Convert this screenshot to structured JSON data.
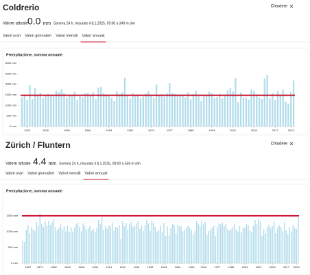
{
  "panels": [
    {
      "title": "Coldrerio",
      "close": "Chiudere",
      "current_label": "Valore attuale",
      "current_value": "0.0",
      "unit": "mm",
      "note": "Somma 24 h, misurato il 8.1.2025, 09:00 a 349 m slm",
      "tabs": [
        "Valori orari",
        "Valori giornalieri",
        "Valori mensili",
        "Valori annuali"
      ],
      "active_tab": 3
    },
    {
      "title": "Zürich / Fluntern",
      "close": "Chiudere",
      "current_label": "Valore attuale",
      "current_value": "4.4",
      "unit": "mm",
      "note": "Somma 24 h, misurato il 8.1.2025, 09:00 a 558 m slm",
      "tabs": [
        "Valori orari",
        "Valori giornalieri",
        "Valori mensili",
        "Valori annuali"
      ],
      "active_tab": 3
    }
  ],
  "chart_data": [
    {
      "type": "bar",
      "title": "Precipitazione, somma annuale",
      "color": "#b3dceb",
      "x": [
        1921,
        1922,
        1923,
        1924,
        1925,
        1926,
        1927,
        1928,
        1929,
        1930,
        1931,
        1932,
        1933,
        1934,
        1935,
        1936,
        1937,
        1938,
        1939,
        1940,
        1941,
        1942,
        1943,
        1944,
        1945,
        1946,
        1947,
        1948,
        1949,
        1950,
        1951,
        1952,
        1953,
        1954,
        1955,
        1956,
        1957,
        1958,
        1959,
        1960,
        1961,
        1962,
        1963,
        1964,
        1965,
        1966,
        1967,
        1968,
        1969,
        1970,
        1971,
        1972,
        1973,
        1974,
        1975,
        1976,
        1977,
        1978,
        1979,
        1980,
        1981,
        1982,
        1983,
        1984,
        1985,
        1986,
        1987,
        1988,
        1989,
        1990,
        1991,
        1992,
        1993,
        1994,
        1995,
        1996,
        1997,
        1998,
        1999,
        2000,
        2001,
        2002,
        2003,
        2004,
        2005,
        2006,
        2007,
        2008,
        2009,
        2010,
        2011,
        2012,
        2013,
        2014,
        2015,
        2016,
        2017,
        2018,
        2019,
        2020,
        2021,
        2022,
        2023,
        2024
      ],
      "values": [
        1380,
        1520,
        1250,
        1960,
        1300,
        1820,
        1450,
        1600,
        1350,
        1500,
        1550,
        1480,
        1420,
        1700,
        1640,
        1760,
        1590,
        1380,
        1450,
        1520,
        1660,
        1250,
        1440,
        1390,
        1580,
        1600,
        1480,
        1620,
        1300,
        1840,
        1880,
        1590,
        1460,
        1500,
        1370,
        1210,
        1690,
        1540,
        1620,
        2310,
        1450,
        1320,
        1600,
        1480,
        1520,
        1330,
        1420,
        1570,
        1680,
        1510,
        1360,
        1990,
        1500,
        1540,
        1420,
        1580,
        2050,
        1600,
        1550,
        1460,
        1520,
        1500,
        1380,
        1620,
        1290,
        1550,
        1700,
        1430,
        1200,
        1510,
        1470,
        1650,
        1580,
        1350,
        1400,
        1560,
        1330,
        1490,
        1720,
        1830,
        1680,
        2300,
        1150,
        1620,
        1380,
        1370,
        1280,
        1760,
        1700,
        1520,
        1390,
        1300,
        2280,
        2450,
        1330,
        1590,
        1260,
        1700,
        1480,
        1750,
        1180,
        1090,
        1640,
        2180
      ],
      "xlim": [
        1920.5,
        2024.5
      ],
      "xticks": [
        1923,
        1930,
        1938,
        1946,
        1954,
        1962,
        1970,
        1977,
        1985,
        1993,
        2001,
        2009,
        2017,
        2023
      ],
      "ylim": [
        0,
        3000
      ],
      "yticks": [
        {
          "value": 0,
          "label": "0 mm"
        },
        {
          "value": 500,
          "label": "500 mm"
        },
        {
          "value": 1000,
          "label": "1000 mm"
        },
        {
          "value": 1500,
          "label": "1500 mm"
        },
        {
          "value": 2000,
          "label": "2000 mm"
        },
        {
          "value": 2500,
          "label": "2500 mm"
        },
        {
          "value": 3000,
          "label": "3000 mm"
        }
      ],
      "reference_line": {
        "value": 1480,
        "color": "#c8102e"
      }
    },
    {
      "type": "bar",
      "title": "Precipitazione, somma annuale",
      "color": "#b3dceb",
      "x": [
        1864,
        1865,
        1866,
        1867,
        1868,
        1869,
        1870,
        1871,
        1872,
        1873,
        1874,
        1875,
        1876,
        1877,
        1878,
        1879,
        1880,
        1881,
        1882,
        1883,
        1884,
        1885,
        1886,
        1887,
        1888,
        1889,
        1890,
        1891,
        1892,
        1893,
        1894,
        1895,
        1896,
        1897,
        1898,
        1899,
        1900,
        1901,
        1902,
        1903,
        1904,
        1905,
        1906,
        1907,
        1908,
        1909,
        1910,
        1911,
        1912,
        1913,
        1914,
        1915,
        1916,
        1917,
        1918,
        1919,
        1920,
        1921,
        1922,
        1923,
        1924,
        1925,
        1926,
        1927,
        1928,
        1929,
        1930,
        1931,
        1932,
        1933,
        1934,
        1935,
        1936,
        1937,
        1938,
        1939,
        1940,
        1941,
        1942,
        1943,
        1944,
        1945,
        1946,
        1947,
        1948,
        1949,
        1950,
        1951,
        1952,
        1953,
        1954,
        1955,
        1956,
        1957,
        1958,
        1959,
        1960,
        1961,
        1962,
        1963,
        1964,
        1965,
        1966,
        1967,
        1968,
        1969,
        1970,
        1971,
        1972,
        1973,
        1974,
        1975,
        1976,
        1977,
        1978,
        1979,
        1980,
        1981,
        1982,
        1983,
        1984,
        1985,
        1986,
        1987,
        1988,
        1989,
        1990,
        1991,
        1992,
        1993,
        1994,
        1995,
        1996,
        1997,
        1998,
        1999,
        2000,
        2001,
        2002,
        2003,
        2004,
        2005,
        2006,
        2007,
        2008,
        2009,
        2010,
        2011,
        2012,
        2013,
        2014,
        2015,
        2016,
        2017,
        2018,
        2019,
        2020,
        2021,
        2022,
        2023,
        2024
      ],
      "values": [
        720,
        680,
        1050,
        1210,
        950,
        1130,
        1080,
        1020,
        1300,
        1180,
        1580,
        1250,
        1150,
        1320,
        1190,
        1340,
        1210,
        1290,
        1400,
        1150,
        1050,
        1120,
        1230,
        1080,
        1170,
        1010,
        1190,
        980,
        1140,
        1000,
        1120,
        1230,
        1280,
        1150,
        1010,
        1260,
        1190,
        1070,
        1110,
        1170,
        1020,
        1080,
        1000,
        1120,
        1380,
        1240,
        1450,
        1050,
        1180,
        1090,
        1200,
        1160,
        1290,
        1030,
        1150,
        1110,
        1220,
        760,
        1330,
        1170,
        1280,
        1060,
        1230,
        1310,
        1150,
        1190,
        1270,
        1330,
        1090,
        1200,
        1020,
        1210,
        1380,
        1260,
        1030,
        1350,
        1280,
        1150,
        1000,
        1060,
        1190,
        980,
        1270,
        860,
        1160,
        880,
        1100,
        1240,
        1210,
        940,
        1220,
        1160,
        1170,
        1010,
        1060,
        1120,
        1190,
        1130,
        1050,
        900,
        1020,
        1340,
        1250,
        1170,
        1350,
        1230,
        1310,
        890,
        1020,
        1060,
        1120,
        1190,
        850,
        1150,
        1260,
        1230,
        1290,
        1170,
        1240,
        1080,
        1030,
        1080,
        1150,
        1260,
        1060,
        1000,
        1180,
        970,
        1140,
        1110,
        1230,
        1200,
        1020,
        980,
        1190,
        1360,
        1230,
        1400,
        1330,
        860,
        1080,
        940,
        1150,
        1220,
        1110,
        1170,
        1320,
        950,
        1130,
        1210,
        1140,
        1010,
        1290,
        1040,
        920,
        1150,
        1000,
        1210,
        1120,
        1090,
        1460
      ],
      "xlim": [
        1863.5,
        2024.5
      ],
      "xticks": [
        1867,
        1874,
        1882,
        1890,
        1898,
        1906,
        1914,
        1922,
        1930,
        1938,
        1946,
        1954,
        1962,
        1969,
        1977,
        1985,
        1993,
        2001,
        2009,
        2017,
        2023
      ],
      "ylim": [
        0,
        1800
      ],
      "yticks": [
        {
          "value": 0,
          "label": "0 mm"
        },
        {
          "value": 500,
          "label": "500 mm"
        },
        {
          "value": 1000,
          "label": "1000 mm"
        },
        {
          "value": 1500,
          "label": "1500 mm"
        }
      ],
      "reference_line": {
        "value": 1500,
        "color": "#c8102e"
      }
    }
  ]
}
